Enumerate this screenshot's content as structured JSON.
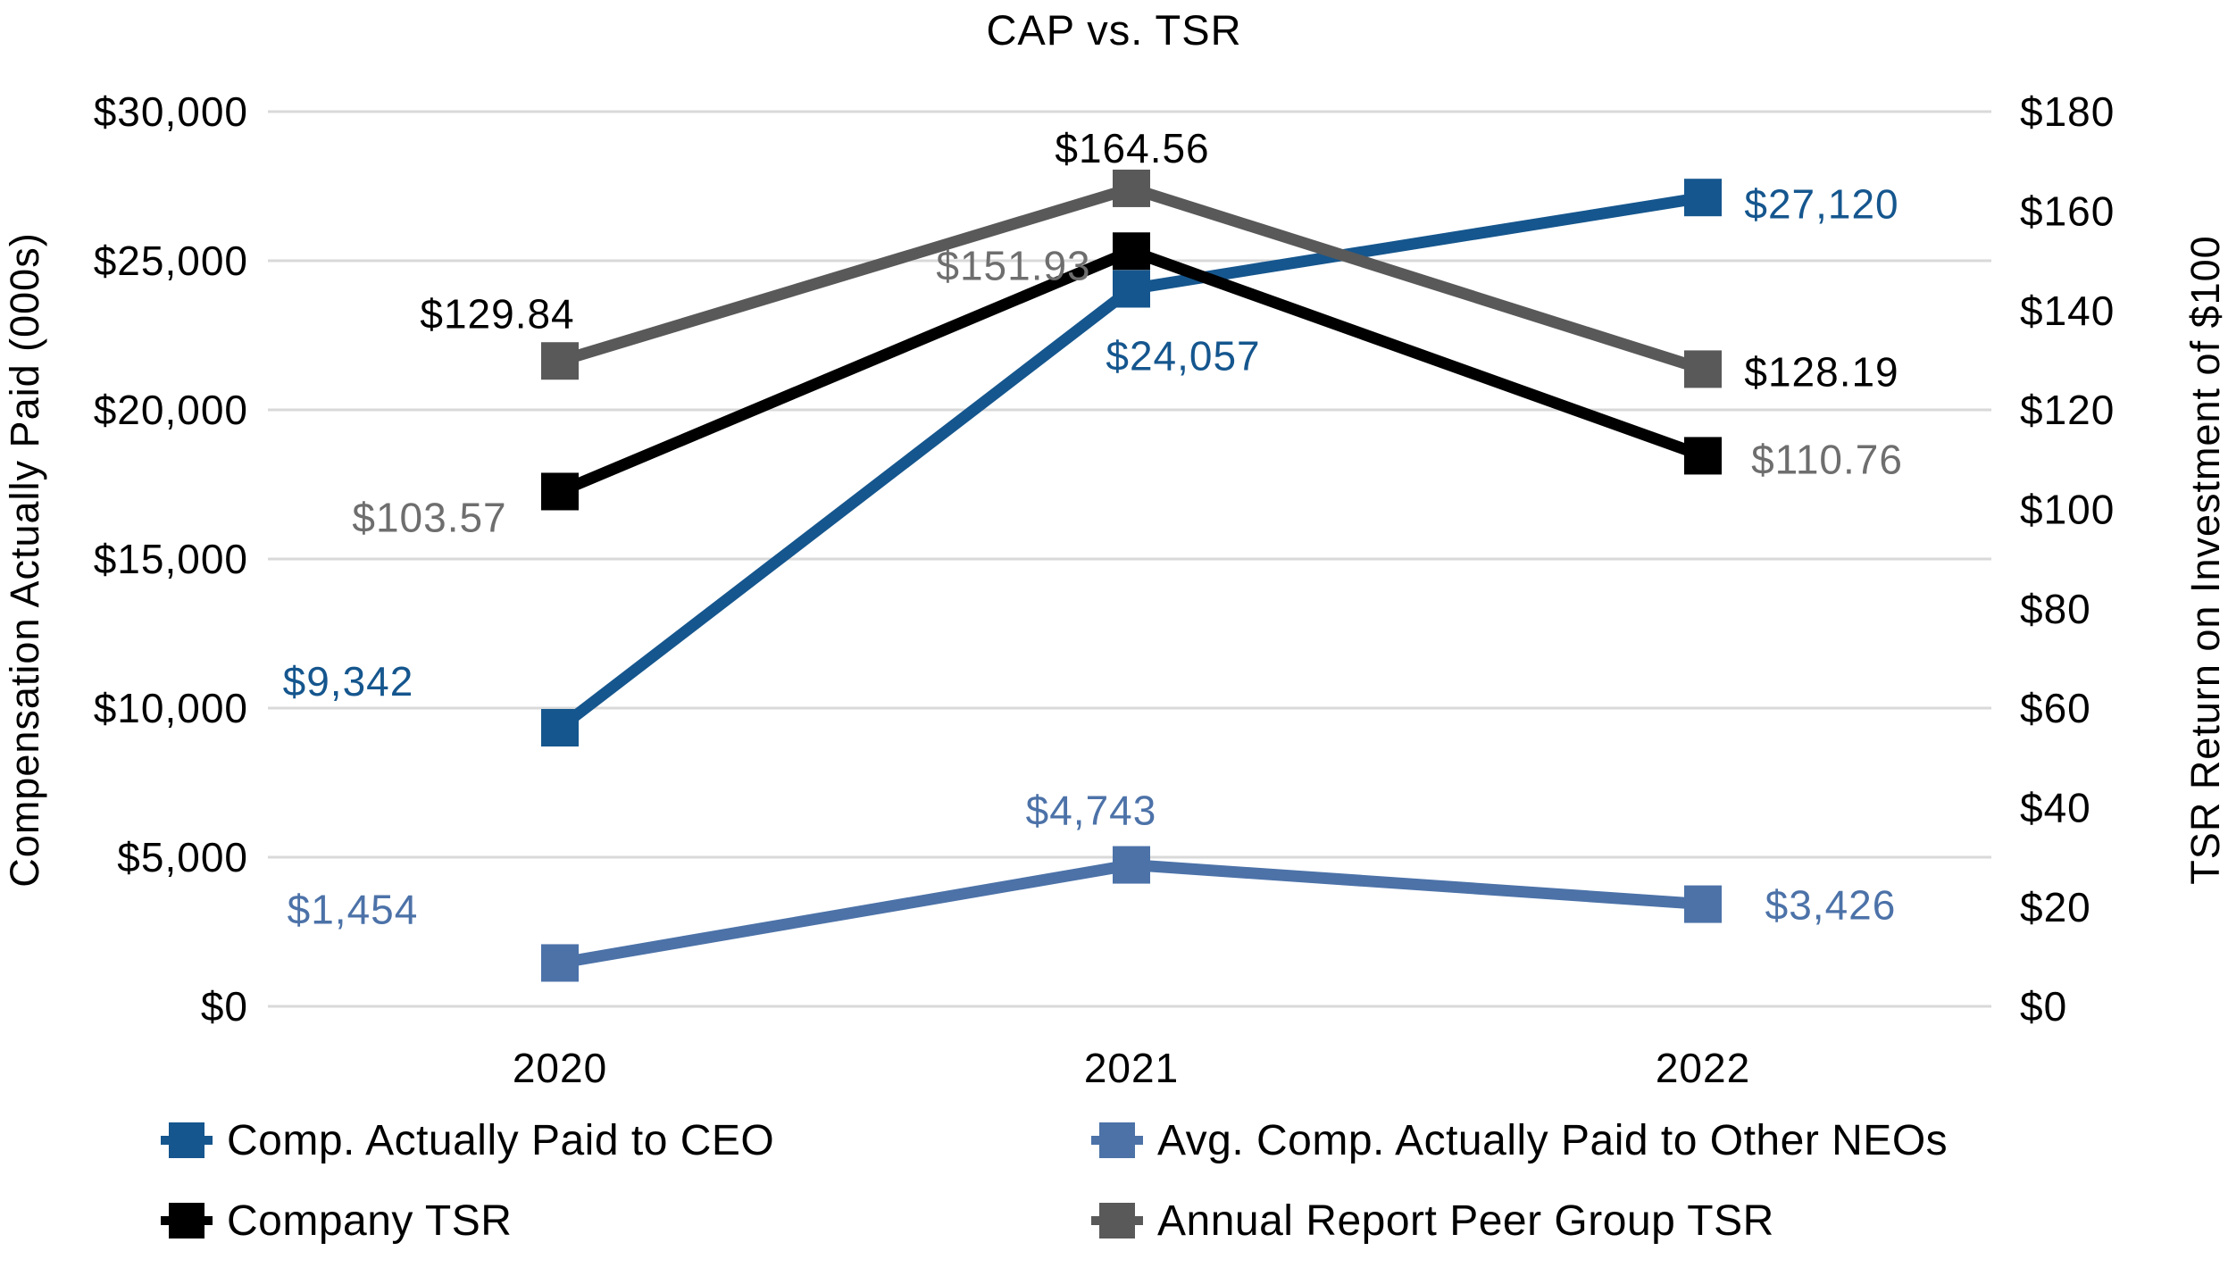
{
  "title": "CAP vs. TSR",
  "axes": {
    "left": {
      "title": "Compensation Actually Paid (000s)",
      "ticks": [
        "$30,000",
        "$25,000",
        "$20,000",
        "$15,000",
        "$10,000",
        "$5,000",
        "$0"
      ]
    },
    "right": {
      "title": "TSR Return on Investment of $100",
      "ticks": [
        "$180",
        "$160",
        "$140",
        "$120",
        "$100",
        "$80",
        "$60",
        "$40",
        "$20",
        "$0"
      ]
    }
  },
  "chart_data": {
    "type": "line",
    "title": "CAP vs. TSR",
    "categories": [
      "2020",
      "2021",
      "2022"
    ],
    "grid": true,
    "grid_color": "#D9D9D9",
    "legend_position": "bottom",
    "left_axis_label": "Compensation Actually Paid (000s)",
    "right_axis_label": "TSR Return on Investment of $100",
    "left_range": [
      0,
      30000
    ],
    "right_range": [
      0,
      180
    ],
    "marker": "square",
    "series": [
      {
        "name": "Comp. Actually Paid to CEO",
        "axis": "left",
        "color": "#15568E",
        "label_color": "#15568E",
        "values": [
          9342,
          24057,
          27120
        ],
        "labels": [
          "$9,342",
          "$24,057",
          "$27,120"
        ]
      },
      {
        "name": "Avg. Comp. Actually Paid to Other NEOs",
        "axis": "left",
        "color": "#4C72A8",
        "label_color": "#4C72A8",
        "values": [
          1454,
          4743,
          3426
        ],
        "labels": [
          "$1,454",
          "$4,743",
          "$3,426"
        ]
      },
      {
        "name": "Company TSR",
        "axis": "right",
        "color": "#000000",
        "label_color": "#6E6E6E",
        "values": [
          103.57,
          151.93,
          110.76
        ],
        "labels": [
          "$103.57",
          "$151.93",
          "$110.76"
        ]
      },
      {
        "name": "Annual Report Peer Group TSR",
        "axis": "right",
        "color": "#595959",
        "label_color": "#000000",
        "values": [
          129.84,
          164.56,
          128.19
        ],
        "labels": [
          "$129.84",
          "$164.56",
          "$128.19"
        ]
      }
    ]
  },
  "legend": {
    "items": [
      {
        "label": "Comp. Actually Paid to CEO",
        "color": "#15568E"
      },
      {
        "label": "Avg. Comp. Actually Paid to Other NEOs",
        "color": "#4C72A8"
      },
      {
        "label": "Company TSR",
        "color": "#000000"
      },
      {
        "label": "Annual Report Peer Group TSR",
        "color": "#595959"
      }
    ]
  }
}
